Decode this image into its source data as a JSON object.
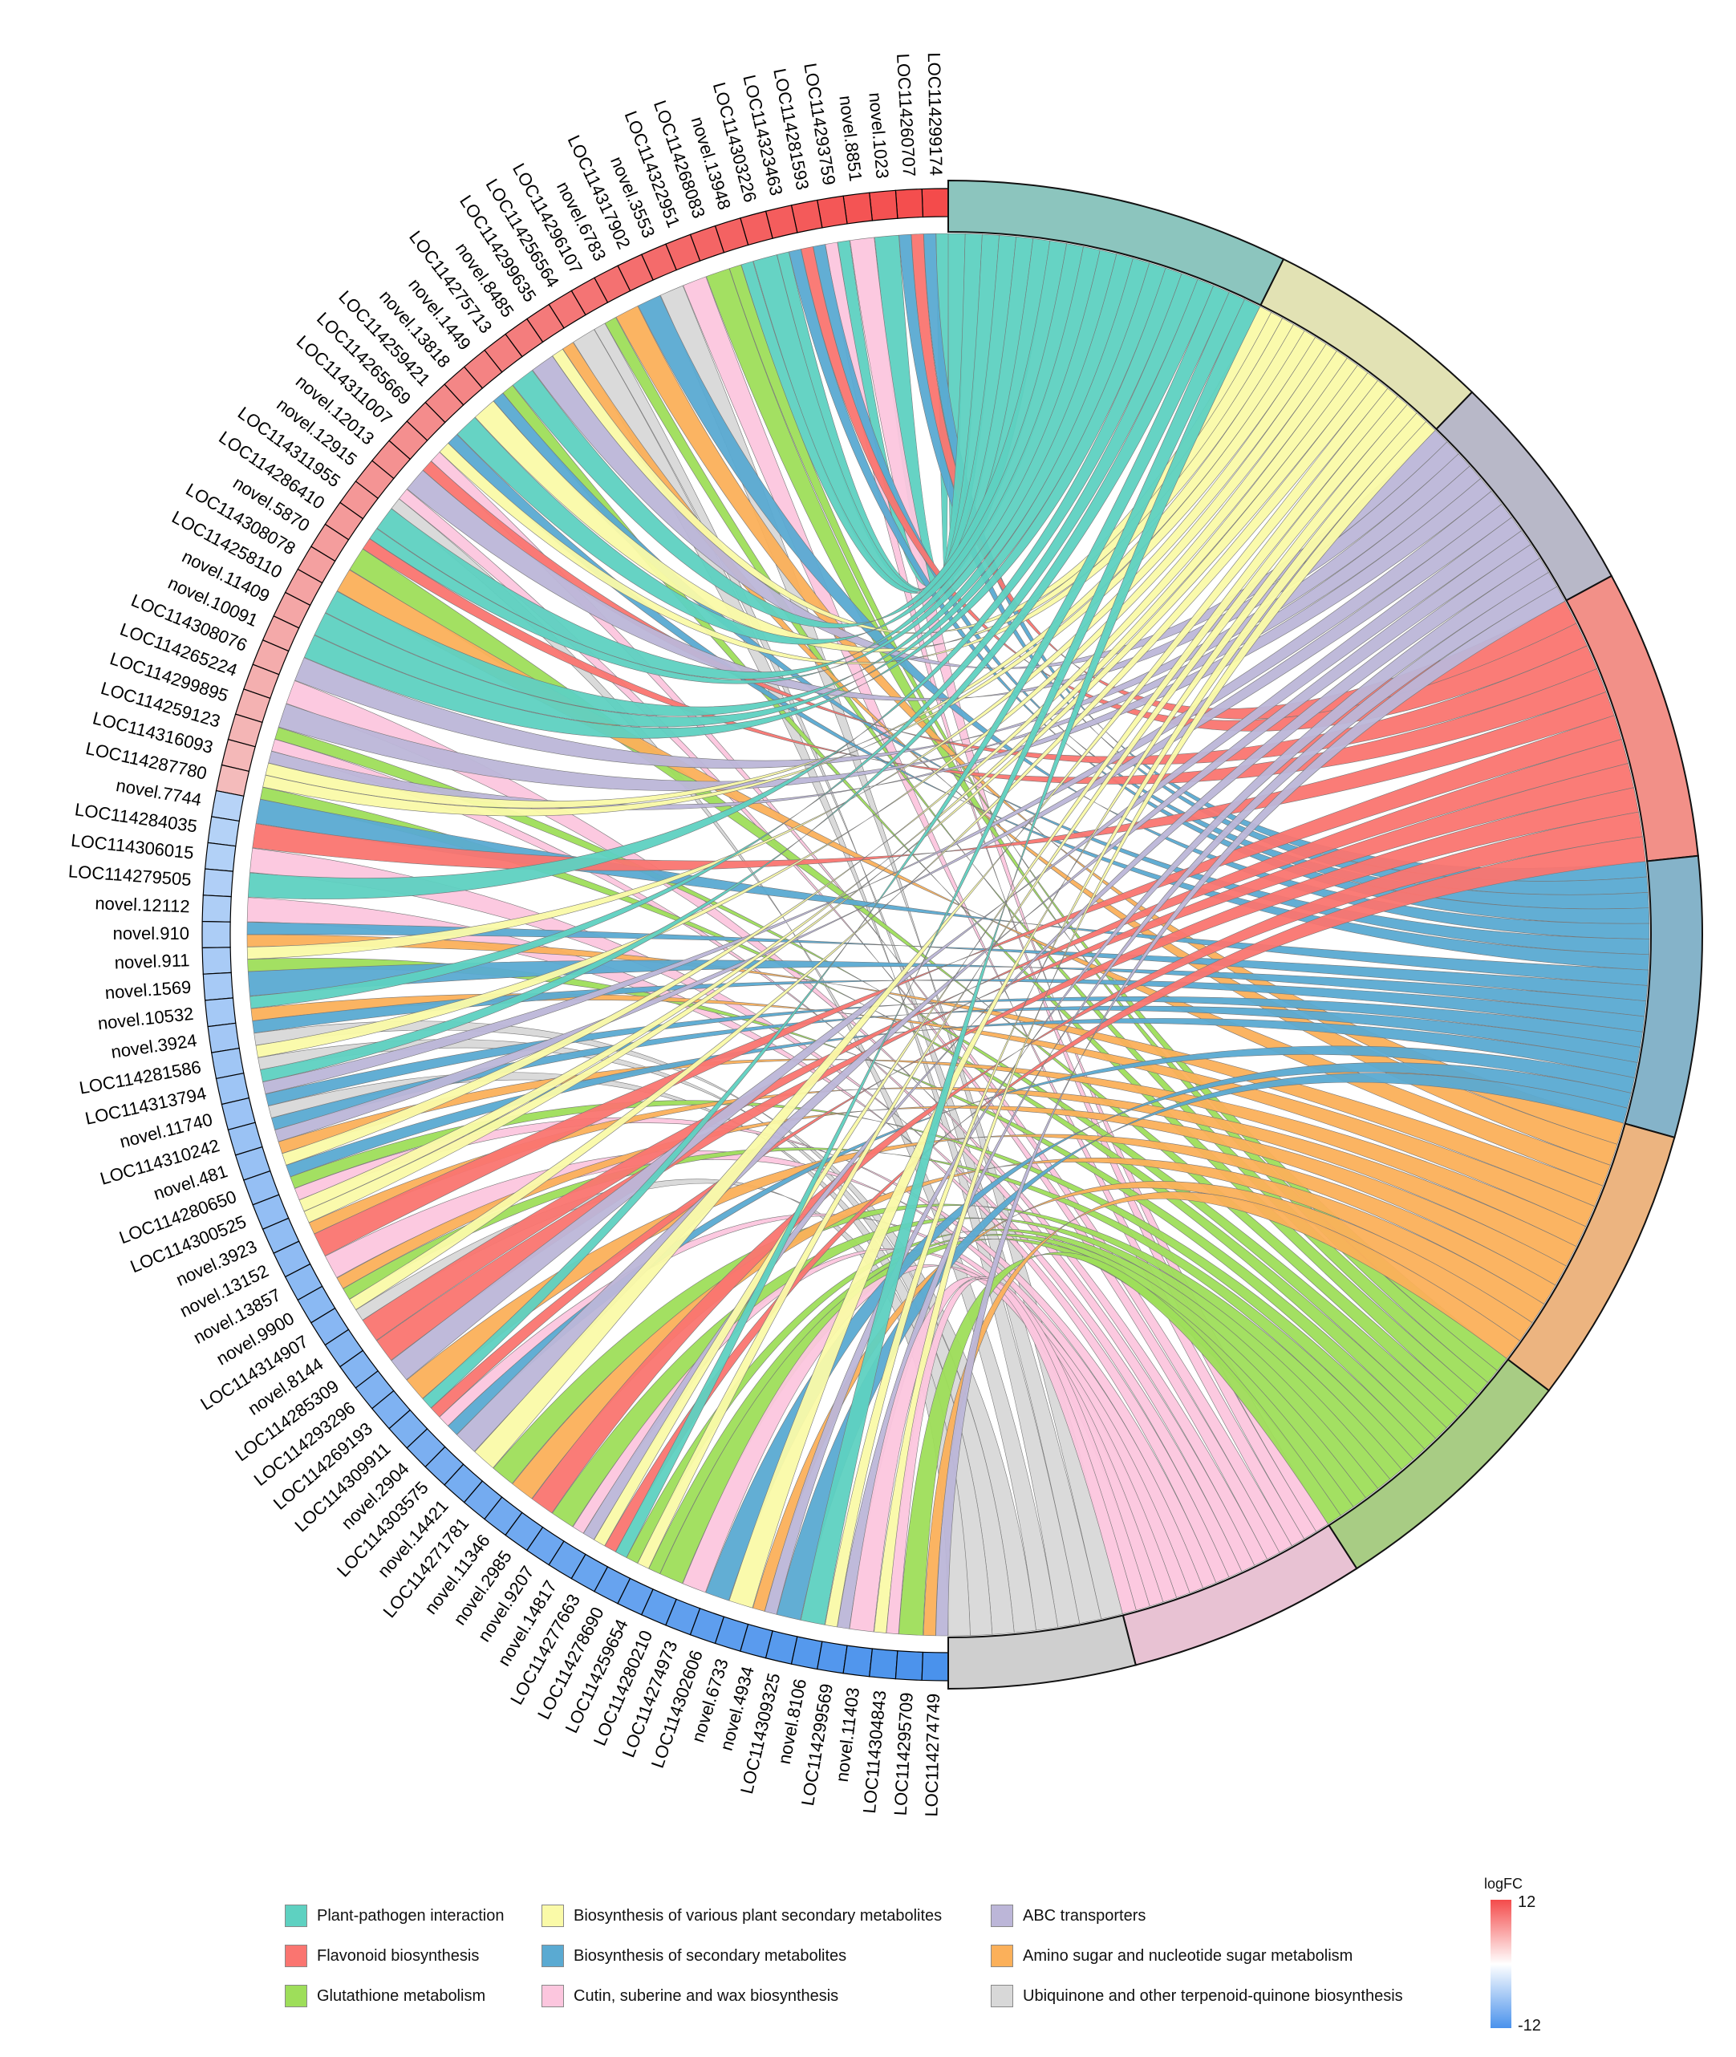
{
  "genes": [
    "LOC114299174",
    "LOC114260707",
    "novel.1023",
    "novel.8851",
    "LOC114293759",
    "LOC114281593",
    "LOC114323463",
    "LOC114303226",
    "novel.13948",
    "LOC114268083",
    "LOC114322951",
    "novel.3553",
    "LOC114317902",
    "novel.6783",
    "LOC114296107",
    "LOC114256564",
    "LOC114299635",
    "novel.8485",
    "LOC114275713",
    "novel.1449",
    "novel.13818",
    "LOC114259421",
    "LOC114265669",
    "LOC114311007",
    "novel.12013",
    "novel.12915",
    "LOC114311955",
    "LOC114286410",
    "novel.5870",
    "LOC114308078",
    "LOC114258110",
    "novel.11409",
    "novel.10091",
    "LOC114308076",
    "LOC114265224",
    "LOC114299895",
    "LOC114259123",
    "LOC114316093",
    "LOC114287780",
    "novel.7744",
    "LOC114284035",
    "LOC114306015",
    "LOC114279505",
    "novel.12112",
    "novel.910",
    "novel.911",
    "novel.1569",
    "novel.10532",
    "novel.3924",
    "LOC114281586",
    "LOC114313794",
    "novel.11740",
    "LOC114310242",
    "novel.481",
    "LOC114280650",
    "LOC114300525",
    "novel.3923",
    "novel.13152",
    "novel.13857",
    "novel.9900",
    "LOC114314907",
    "novel.8144",
    "LOC114285309",
    "LOC114293296",
    "LOC114269193",
    "LOC114309911",
    "novel.2904",
    "LOC114303575",
    "novel.14421",
    "LOC114271781",
    "novel.11346",
    "novel.2985",
    "novel.9207",
    "novel.14817",
    "LOC114277663",
    "LOC114278690",
    "LOC114259654",
    "LOC114280210",
    "LOC114274973",
    "LOC114302606",
    "novel.6733",
    "novel.4934",
    "LOC114309325",
    "novel.8106",
    "LOC114299569",
    "novel.11403",
    "LOC114304843",
    "LOC114295709",
    "LOC114274749"
  ],
  "pathways": [
    {
      "name": "Plant-pathogen interaction",
      "color": "#5ed1c1",
      "outer": "#8cc5be"
    },
    {
      "name": "Biosynthesis of various plant secondary metabolites",
      "color": "#fafaa8",
      "outer": "#e2e2b4"
    },
    {
      "name": "ABC transporters",
      "color": "#bcb6d8",
      "outer": "#b8b8c8"
    },
    {
      "name": "Flavonoid biosynthesis",
      "color": "#fa7570",
      "outer": "#f29088"
    },
    {
      "name": "Biosynthesis of secondary metabolites",
      "color": "#5aaad2",
      "outer": "#85b3c9"
    },
    {
      "name": "Amino sugar and nucleotide sugar metabolism",
      "color": "#fbb05a",
      "outer": "#ecb480"
    },
    {
      "name": "Glutathione metabolism",
      "color": "#9ede5a",
      "outer": "#a8cc84"
    },
    {
      "name": "Cutin, suberine and wax biosynthesis",
      "color": "#fcc6de",
      "outer": "#e8c2d3"
    },
    {
      "name": "Ubiquinone and other terpenoid-quinone biosynthesis",
      "color": "#d8d8d8",
      "outer": "#cfcfcf"
    }
  ],
  "legend_order": [
    0,
    1,
    2,
    3,
    4,
    5,
    6,
    7,
    8
  ],
  "scale": {
    "title": "logFC",
    "max": "12",
    "min": "-12",
    "high_color": "#f44b4b",
    "low_color": "#4a92ec"
  }
}
